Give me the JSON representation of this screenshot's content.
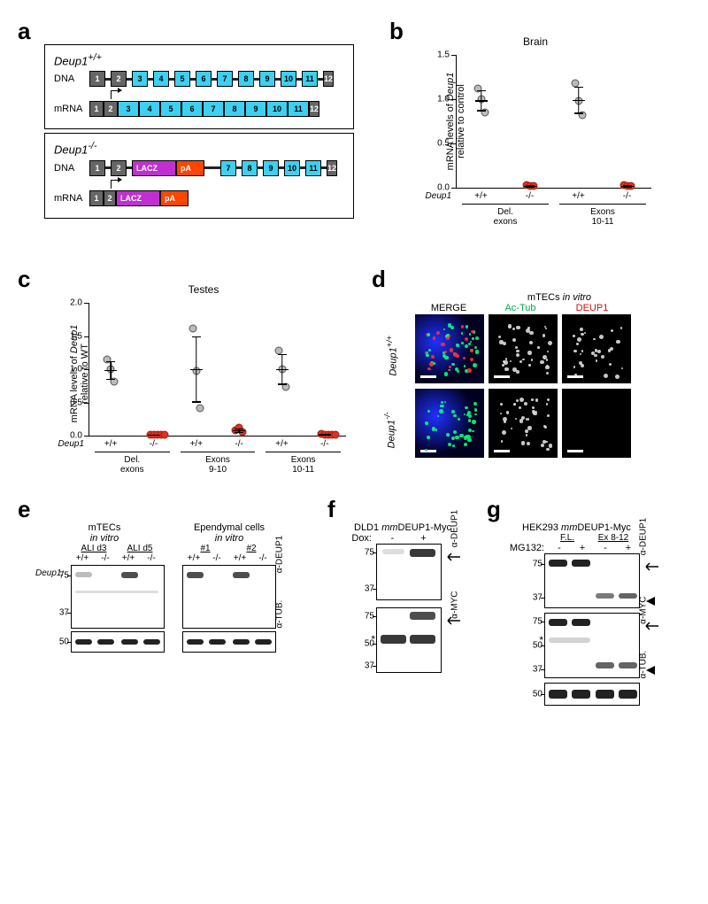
{
  "panelLabels": {
    "a": "a",
    "b": "b",
    "c": "c",
    "d": "d",
    "e": "e",
    "f": "f",
    "g": "g"
  },
  "panelA": {
    "wt_genotype": "Deup1",
    "wt_super": "+/+",
    "ko_genotype": "Deup1",
    "ko_super": "-/-",
    "dna_label": "DNA",
    "mrna_label": "mRNA",
    "exons": [
      "1",
      "2",
      "3",
      "4",
      "5",
      "6",
      "7",
      "8",
      "9",
      "10",
      "11",
      "12"
    ],
    "lacZ": "LACZ",
    "pA": "pA"
  },
  "panelB": {
    "title": "Brain",
    "ylabel": "mRNA levels of Deup1\nrelative to control",
    "ylim": [
      0,
      1.5
    ],
    "yticks": [
      0,
      0.5,
      1.0,
      1.5
    ],
    "groups": [
      {
        "label": "Del.\nexons",
        "sub": [
          {
            "x": "+/+",
            "pts": [
              1.12,
              1.0,
              0.85
            ],
            "color": "grey"
          },
          {
            "x": "-/-",
            "pts": [
              0.03,
              0.02,
              0.02
            ],
            "color": "red"
          }
        ]
      },
      {
        "label": "Exons\n10-11",
        "sub": [
          {
            "x": "+/+",
            "pts": [
              1.18,
              0.98,
              0.82
            ],
            "color": "grey"
          },
          {
            "x": "-/-",
            "pts": [
              0.03,
              0.02,
              0.02
            ],
            "color": "red"
          }
        ]
      }
    ],
    "xaxis_label": "Deup1"
  },
  "panelC": {
    "title": "Testes",
    "ylabel": "mRNA levels of Deup1\nrelative to WT",
    "ylim": [
      0,
      2.0
    ],
    "yticks": [
      0,
      0.5,
      1.0,
      1.5,
      2.0
    ],
    "groups": [
      {
        "label": "Del.\nexons",
        "sub": [
          {
            "x": "+/+",
            "pts": [
              1.15,
              1.0,
              0.82
            ],
            "color": "grey"
          },
          {
            "x": "-/-",
            "pts": [
              0.02,
              0.02,
              0.02,
              0.02,
              0.02
            ],
            "color": "red"
          }
        ]
      },
      {
        "label": "Exons\n9-10",
        "sub": [
          {
            "x": "+/+",
            "pts": [
              1.62,
              0.98,
              0.42
            ],
            "color": "grey"
          },
          {
            "x": "-/-",
            "pts": [
              0.08,
              0.12,
              0.05
            ],
            "color": "red"
          }
        ]
      },
      {
        "label": "Exons\n10-11",
        "sub": [
          {
            "x": "+/+",
            "pts": [
              1.28,
              1.0,
              0.74
            ],
            "color": "grey"
          },
          {
            "x": "-/-",
            "pts": [
              0.03,
              0.02,
              0.02,
              0.02,
              0.02
            ],
            "color": "red"
          }
        ]
      }
    ],
    "xaxis_label": "Deup1"
  },
  "panelD": {
    "header": "mTECs in vitro",
    "cols": [
      "MERGE",
      "Ac-Tub",
      "DEUP1"
    ],
    "rows": [
      "Deup1+/+",
      "Deup1-/-"
    ],
    "colors": {
      "merge_bg": "#001030",
      "actub": "#00ff80",
      "deup1": "#ff2020",
      "dapi": "#2030ff"
    }
  },
  "panelE": {
    "left_title": "mTECs\nin vitro",
    "right_title": "Ependymal cells\nin vitro",
    "left_groups": [
      "ALI d3",
      "ALI d5"
    ],
    "right_groups": [
      "#1",
      "#2"
    ],
    "genotypes": [
      "+/+",
      "-/-",
      "+/+",
      "-/-"
    ],
    "geno_label": "Deup1:",
    "mw": [
      75,
      37,
      50
    ],
    "ab1": "α-DEUP1",
    "ab2": "α-TUB."
  },
  "panelF": {
    "title": "DLD1 mmDEUP1-Myc",
    "dox_label": "Dox:",
    "dox": [
      "-",
      "+"
    ],
    "mw": [
      75,
      37,
      75,
      50,
      37
    ],
    "ab1": "α-DEUP1",
    "ab2": "α-MYC"
  },
  "panelG": {
    "title": "HEK293 mmDEUP1-Myc",
    "groups": [
      "F.L.",
      "Ex 8-12"
    ],
    "mg_label": "MG132:",
    "mg": [
      "-",
      "+",
      "-",
      "+"
    ],
    "mw": [
      75,
      37,
      75,
      50,
      37,
      50
    ],
    "ab1": "α-DEUP1",
    "ab2": "α-MYC",
    "ab3": "α-TUB."
  }
}
